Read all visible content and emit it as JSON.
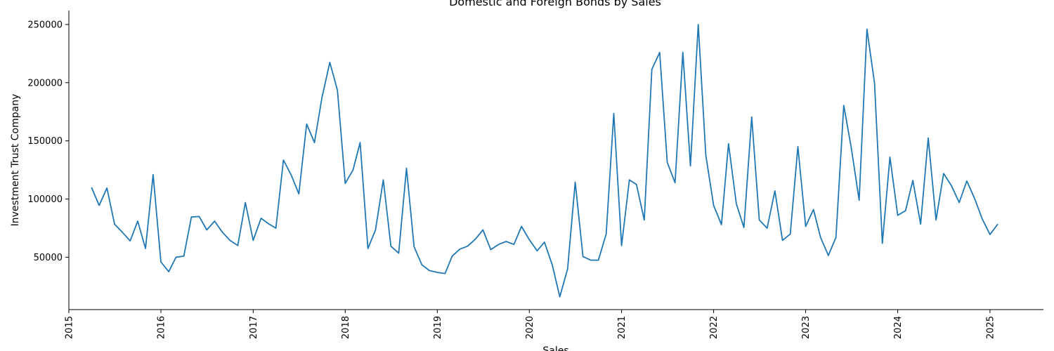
{
  "chart_data": {
    "type": "line",
    "title": "Domestic and Foreign Bonds by Sales",
    "xlabel": "Sales",
    "ylabel": "Investment Trust Company",
    "xlim": [
      "2015-01-01",
      "2025-08-01"
    ],
    "ylim": [
      5000,
      262000
    ],
    "x_ticks": [
      "2015",
      "2016",
      "2017",
      "2018",
      "2019",
      "2020",
      "2021",
      "2022",
      "2023",
      "2024",
      "2025"
    ],
    "y_ticks": [
      50000,
      100000,
      150000,
      200000,
      250000
    ],
    "grid": false,
    "series": [
      {
        "color": "#1f77b4",
        "x": [
          "2015-04",
          "2015-05",
          "2015-06",
          "2015-07",
          "2015-08",
          "2015-09",
          "2015-10",
          "2015-11",
          "2015-12",
          "2016-01",
          "2016-02",
          "2016-03",
          "2016-04",
          "2016-05",
          "2016-06",
          "2016-07",
          "2016-08",
          "2016-09",
          "2016-10",
          "2016-11",
          "2016-12",
          "2017-01",
          "2017-02",
          "2017-03",
          "2017-04",
          "2017-05",
          "2017-06",
          "2017-07",
          "2017-08",
          "2017-09",
          "2017-10",
          "2017-11",
          "2017-12",
          "2018-01",
          "2018-02",
          "2018-03",
          "2018-04",
          "2018-05",
          "2018-06",
          "2018-07",
          "2018-08",
          "2018-09",
          "2018-10",
          "2018-11",
          "2018-12",
          "2019-01",
          "2019-02",
          "2019-03",
          "2019-04",
          "2019-05",
          "2019-06",
          "2019-07",
          "2019-08",
          "2019-09",
          "2019-10",
          "2019-11",
          "2019-12",
          "2020-01",
          "2020-02",
          "2020-03",
          "2020-04",
          "2020-05",
          "2020-06",
          "2020-07",
          "2020-08",
          "2020-09",
          "2020-10",
          "2020-11",
          "2020-12",
          "2021-01",
          "2021-02",
          "2021-03",
          "2021-04",
          "2021-05",
          "2021-06",
          "2021-07",
          "2021-08",
          "2021-09",
          "2021-10",
          "2021-11",
          "2021-12",
          "2022-01",
          "2022-02",
          "2022-03",
          "2022-04",
          "2022-05",
          "2022-06",
          "2022-07",
          "2022-08",
          "2022-09",
          "2022-10",
          "2022-11",
          "2022-12",
          "2023-01",
          "2023-02",
          "2023-03",
          "2023-04",
          "2023-05",
          "2023-06",
          "2023-07",
          "2023-08",
          "2023-09",
          "2023-10",
          "2023-11",
          "2023-12",
          "2024-01",
          "2024-02",
          "2024-03",
          "2024-04",
          "2024-05",
          "2024-06",
          "2024-07",
          "2024-08",
          "2024-09",
          "2024-10",
          "2024-11",
          "2024-12",
          "2025-01",
          "2025-02"
        ],
        "values": [
          110000,
          94500,
          109500,
          78500,
          71500,
          64000,
          81000,
          57500,
          121000,
          46000,
          37500,
          50000,
          51000,
          84500,
          85000,
          73500,
          81000,
          71500,
          64500,
          60000,
          97000,
          64500,
          83500,
          79000,
          75000,
          133500,
          120500,
          104500,
          164500,
          148500,
          187500,
          217500,
          193500,
          113500,
          125000,
          148500,
          57500,
          73500,
          116500,
          59500,
          53500,
          126500,
          59000,
          43500,
          38500,
          37000,
          36000,
          51000,
          57000,
          59500,
          65500,
          73500,
          56500,
          61000,
          63500,
          61000,
          76500,
          65000,
          55500,
          63000,
          43500,
          16000,
          40000,
          114500,
          50500,
          47500,
          47500,
          70000,
          173500,
          60000,
          116500,
          112500,
          82000,
          211500,
          226000,
          131500,
          114000,
          226000,
          128500,
          250000,
          137500,
          94500,
          78000,
          147500,
          96000,
          75500,
          170500,
          82000,
          75000,
          107000,
          64500,
          70000,
          145000,
          76500,
          91000,
          67000,
          51500,
          67000,
          180500,
          144000,
          99000,
          246000,
          199500,
          62000,
          136000,
          86000,
          90000,
          116000,
          78500,
          152500,
          82000,
          122000,
          111500,
          97000,
          115500,
          100500,
          83000,
          69500,
          78500
        ]
      }
    ]
  }
}
